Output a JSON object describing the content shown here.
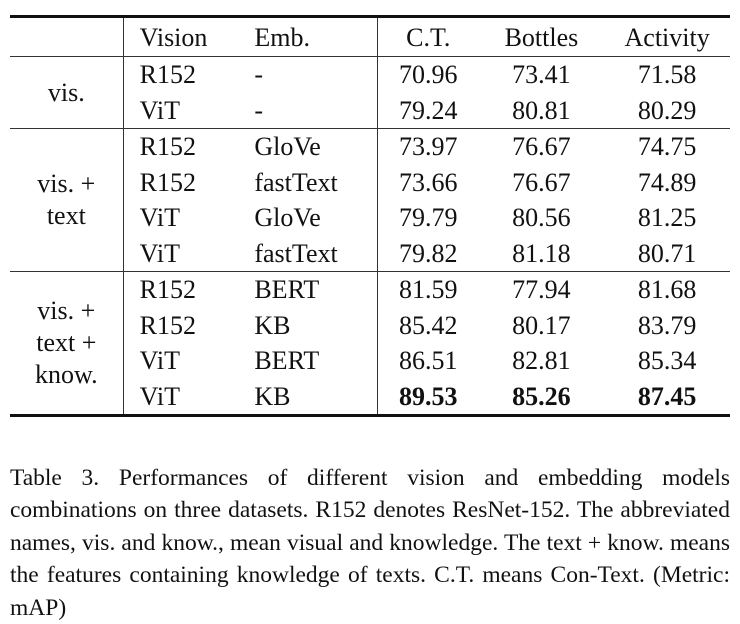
{
  "table": {
    "headers": [
      "",
      "Vision",
      "Emb.",
      "C.T.",
      "Bottles",
      "Activity"
    ],
    "groups": [
      {
        "label_lines": [
          "vis."
        ],
        "rows": [
          {
            "vision": "R152",
            "emb": "-",
            "values": [
              "70.96",
              "73.41",
              "71.58"
            ]
          },
          {
            "vision": "ViT",
            "emb": "-",
            "values": [
              "79.24",
              "80.81",
              "80.29"
            ]
          }
        ]
      },
      {
        "label_lines": [
          "vis. +",
          "text"
        ],
        "rows": [
          {
            "vision": "R152",
            "emb": "GloVe",
            "values": [
              "73.97",
              "76.67",
              "74.75"
            ]
          },
          {
            "vision": "R152",
            "emb": "fastText",
            "values": [
              "73.66",
              "76.67",
              "74.89"
            ]
          },
          {
            "vision": "ViT",
            "emb": "GloVe",
            "values": [
              "79.79",
              "80.56",
              "81.25"
            ]
          },
          {
            "vision": "ViT",
            "emb": "fastText",
            "values": [
              "79.82",
              "81.18",
              "80.71"
            ]
          }
        ]
      },
      {
        "label_lines": [
          "vis. +",
          "text +",
          "know."
        ],
        "rows": [
          {
            "vision": "R152",
            "emb": "BERT",
            "values": [
              "81.59",
              "77.94",
              "81.68"
            ]
          },
          {
            "vision": "R152",
            "emb": "KB",
            "values": [
              "85.42",
              "80.17",
              "83.79"
            ]
          },
          {
            "vision": "ViT",
            "emb": "BERT",
            "values": [
              "86.51",
              "82.81",
              "85.34"
            ]
          },
          {
            "vision": "ViT",
            "emb": "KB",
            "values": [
              "89.53",
              "85.26",
              "87.45"
            ],
            "bold": true
          }
        ]
      }
    ]
  },
  "caption": "Table 3.  Performances of different vision and embedding models combinations on three datasets.  R152 denotes ResNet-152. The abbreviated names, vis. and know., mean visual and knowledge. The text + know. means the features containing knowledge of texts. C.T. means Con-Text. (Metric: mAP)"
}
